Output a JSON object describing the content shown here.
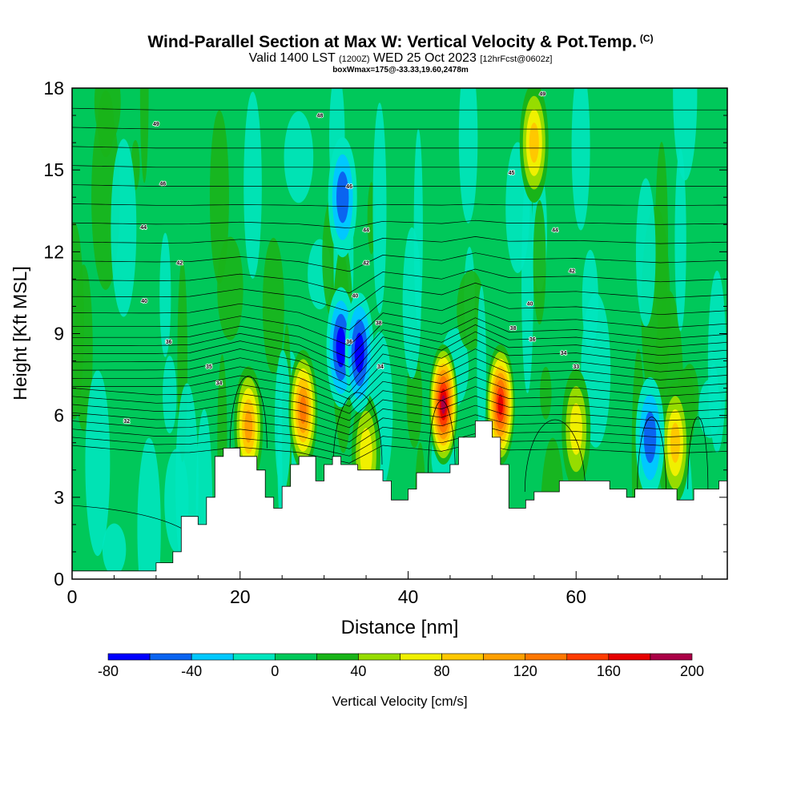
{
  "chart_data": {
    "type": "heatmap",
    "title": "Wind-Parallel Section at Max W: Vertical Velocity & Pot.Temp.",
    "title_mark": "(C)",
    "subtitle_parts": [
      "Valid 1400 LST ",
      "(1200Z)",
      " WED 25 Oct 2023 ",
      "[12hrFcst@0602z]"
    ],
    "subtitle2": "boxWmax=175@-33.33,19.60,2478m",
    "xlabel": "Distance [nm]",
    "ylabel": "Height [Kft MSL]",
    "xlim": [
      0,
      78
    ],
    "ylim": [
      0,
      18
    ],
    "xticks": [
      0,
      20,
      40,
      60
    ],
    "yticks": [
      0,
      3,
      6,
      9,
      12,
      15,
      18
    ],
    "colorbar": {
      "label": "Vertical Velocity [cm/s]",
      "ticks": [
        -80,
        -40,
        0,
        40,
        80,
        120,
        160,
        200
      ],
      "bins": [
        -80,
        -60,
        -40,
        -20,
        0,
        20,
        40,
        60,
        80,
        100,
        120,
        140,
        160,
        180,
        200
      ],
      "colors": [
        "#0000ff",
        "#0a64f0",
        "#00c8ff",
        "#00e6be",
        "#00c85a",
        "#19b419",
        "#96dc00",
        "#f0f000",
        "#ffc800",
        "#ffa000",
        "#ff7800",
        "#ff3c00",
        "#e60000",
        "#aa0046"
      ]
    },
    "terrain": [
      [
        0,
        0.3
      ],
      [
        10,
        0.3
      ],
      [
        10,
        0.6
      ],
      [
        12,
        0.6
      ],
      [
        12,
        1.0
      ],
      [
        13,
        1.0
      ],
      [
        13,
        2.3
      ],
      [
        15,
        2.3
      ],
      [
        15,
        2.0
      ],
      [
        16,
        2.0
      ],
      [
        16,
        3.0
      ],
      [
        17,
        3.0
      ],
      [
        17,
        4.5
      ],
      [
        18,
        4.5
      ],
      [
        18,
        4.8
      ],
      [
        20,
        4.8
      ],
      [
        20,
        4.5
      ],
      [
        22,
        4.5
      ],
      [
        22,
        4.0
      ],
      [
        23,
        4.0
      ],
      [
        23,
        3.0
      ],
      [
        24,
        3.0
      ],
      [
        24,
        2.6
      ],
      [
        25,
        2.6
      ],
      [
        25,
        3.4
      ],
      [
        26,
        3.4
      ],
      [
        26,
        4.2
      ],
      [
        27,
        4.2
      ],
      [
        27,
        4.5
      ],
      [
        29,
        4.5
      ],
      [
        29,
        3.6
      ],
      [
        30,
        3.6
      ],
      [
        30,
        4.2
      ],
      [
        31,
        4.2
      ],
      [
        31,
        4.5
      ],
      [
        32,
        4.5
      ],
      [
        32,
        4.2
      ],
      [
        34,
        4.2
      ],
      [
        34,
        4.0
      ],
      [
        37,
        4.0
      ],
      [
        37,
        3.6
      ],
      [
        38,
        3.6
      ],
      [
        38,
        2.9
      ],
      [
        40,
        2.9
      ],
      [
        40,
        3.3
      ],
      [
        41,
        3.3
      ],
      [
        41,
        3.9
      ],
      [
        45,
        3.9
      ],
      [
        45,
        4.2
      ],
      [
        46,
        4.2
      ],
      [
        46,
        5.2
      ],
      [
        48,
        5.2
      ],
      [
        48,
        5.8
      ],
      [
        50,
        5.8
      ],
      [
        50,
        5.2
      ],
      [
        51,
        5.2
      ],
      [
        51,
        4.2
      ],
      [
        52,
        4.2
      ],
      [
        52,
        2.6
      ],
      [
        54,
        2.6
      ],
      [
        54,
        2.9
      ],
      [
        55,
        2.9
      ],
      [
        55,
        3.2
      ],
      [
        58,
        3.2
      ],
      [
        58,
        3.6
      ],
      [
        64,
        3.6
      ],
      [
        64,
        3.3
      ],
      [
        66,
        3.3
      ],
      [
        66,
        3.0
      ],
      [
        67,
        3.0
      ],
      [
        67,
        3.3
      ],
      [
        72,
        3.3
      ],
      [
        72,
        2.9
      ],
      [
        74,
        2.9
      ],
      [
        74,
        3.3
      ],
      [
        77,
        3.3
      ],
      [
        77,
        3.6
      ],
      [
        78,
        3.6
      ]
    ],
    "features": [
      {
        "type": "updraft",
        "x": 21.0,
        "y": 5.6,
        "value": 110
      },
      {
        "type": "updraft",
        "x": 27.5,
        "y": 6.2,
        "value": 130
      },
      {
        "type": "updraft",
        "x": 35.0,
        "y": 4.6,
        "value": 85
      },
      {
        "type": "updraft",
        "x": 44.2,
        "y": 6.4,
        "value": 200
      },
      {
        "type": "updraft",
        "x": 51.0,
        "y": 6.4,
        "value": 170
      },
      {
        "type": "updraft",
        "x": 55.0,
        "y": 16.0,
        "value": 90
      },
      {
        "type": "updraft",
        "x": 60.0,
        "y": 5.5,
        "value": 70
      },
      {
        "type": "updraft",
        "x": 71.8,
        "y": 5.0,
        "value": 90
      },
      {
        "type": "downdraft",
        "x": 32.0,
        "y": 8.5,
        "value": -75
      },
      {
        "type": "downdraft",
        "x": 34.2,
        "y": 8.3,
        "value": -70
      },
      {
        "type": "downdraft",
        "x": 32.2,
        "y": 14.0,
        "value": -60
      },
      {
        "type": "downdraft",
        "x": 68.8,
        "y": 5.2,
        "value": -60
      }
    ],
    "isentrope_labels": [
      {
        "x": 10.0,
        "y": 16.7,
        "text": "49"
      },
      {
        "x": 29.5,
        "y": 17.0,
        "text": "48"
      },
      {
        "x": 56.0,
        "y": 17.8,
        "text": "49"
      },
      {
        "x": 10.8,
        "y": 14.5,
        "text": "46"
      },
      {
        "x": 33.0,
        "y": 14.4,
        "text": "46"
      },
      {
        "x": 52.3,
        "y": 14.9,
        "text": "45"
      },
      {
        "x": 8.5,
        "y": 12.9,
        "text": "44"
      },
      {
        "x": 35.0,
        "y": 12.8,
        "text": "44"
      },
      {
        "x": 57.5,
        "y": 12.8,
        "text": "44"
      },
      {
        "x": 12.8,
        "y": 11.6,
        "text": "42"
      },
      {
        "x": 35.0,
        "y": 11.6,
        "text": "42"
      },
      {
        "x": 59.5,
        "y": 11.3,
        "text": "42"
      },
      {
        "x": 8.6,
        "y": 10.2,
        "text": "40"
      },
      {
        "x": 33.7,
        "y": 10.4,
        "text": "40"
      },
      {
        "x": 54.5,
        "y": 10.1,
        "text": "40"
      },
      {
        "x": 36.5,
        "y": 9.4,
        "text": "38"
      },
      {
        "x": 52.5,
        "y": 9.2,
        "text": "38"
      },
      {
        "x": 11.5,
        "y": 8.7,
        "text": "36"
      },
      {
        "x": 33.0,
        "y": 8.7,
        "text": "36"
      },
      {
        "x": 54.8,
        "y": 8.8,
        "text": "36"
      },
      {
        "x": 16.3,
        "y": 7.8,
        "text": "35"
      },
      {
        "x": 36.7,
        "y": 7.8,
        "text": "34"
      },
      {
        "x": 58.5,
        "y": 8.3,
        "text": "34"
      },
      {
        "x": 17.5,
        "y": 7.2,
        "text": "34"
      },
      {
        "x": 60.0,
        "y": 7.8,
        "text": "33"
      },
      {
        "x": 6.5,
        "y": 5.8,
        "text": "32"
      }
    ]
  }
}
